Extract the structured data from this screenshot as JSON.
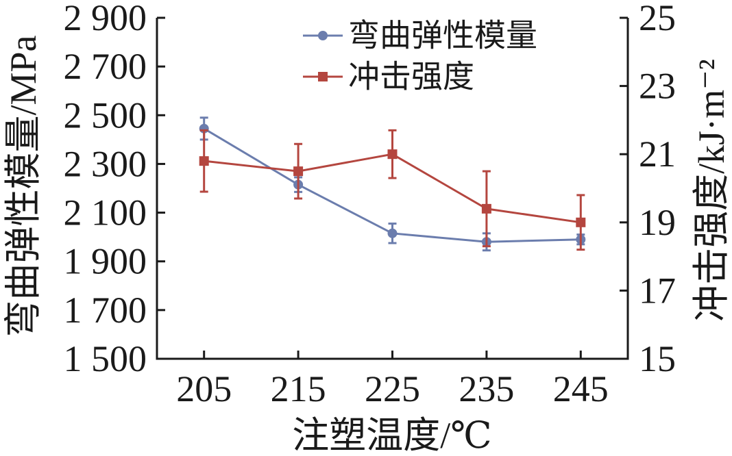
{
  "chart_data": {
    "type": "line",
    "title": "",
    "xlabel": "注塑温度/℃",
    "x": [
      205,
      215,
      225,
      235,
      245
    ],
    "x_ticks": [
      "205",
      "215",
      "225",
      "235",
      "245"
    ],
    "xlim": [
      200,
      250
    ],
    "ylabel_left": "弯曲弹性模量/MPa",
    "ylim_left": [
      1500,
      2900
    ],
    "y_ticks_left": [
      1500,
      1700,
      1900,
      2100,
      2300,
      2500,
      2700,
      2900
    ],
    "y_tick_labels_left": [
      "1 500",
      "1 700",
      "1 900",
      "2 100",
      "2 300",
      "2 500",
      "2 700",
      "2 900"
    ],
    "ylabel_right": "冲击强度/kJ·m⁻²",
    "ylim_right": [
      15,
      25
    ],
    "y_ticks_right": [
      15,
      17,
      19,
      21,
      23,
      25
    ],
    "y_tick_labels_right": [
      "15",
      "17",
      "19",
      "21",
      "23",
      "25"
    ],
    "grid": false,
    "legend": "top-center",
    "series": [
      {
        "name": "弯曲弹性模量",
        "axis": "left",
        "marker": "circle",
        "color": "#6b7dad",
        "values": [
          2445,
          2215,
          2015,
          1980,
          1990
        ],
        "errors": [
          45,
          30,
          40,
          35,
          20
        ]
      },
      {
        "name": "冲击强度",
        "axis": "right",
        "marker": "square",
        "color": "#b4463f",
        "values": [
          20.8,
          20.5,
          21.0,
          19.4,
          19.0
        ],
        "errors": [
          0.9,
          0.8,
          0.7,
          1.1,
          0.8
        ]
      }
    ]
  }
}
